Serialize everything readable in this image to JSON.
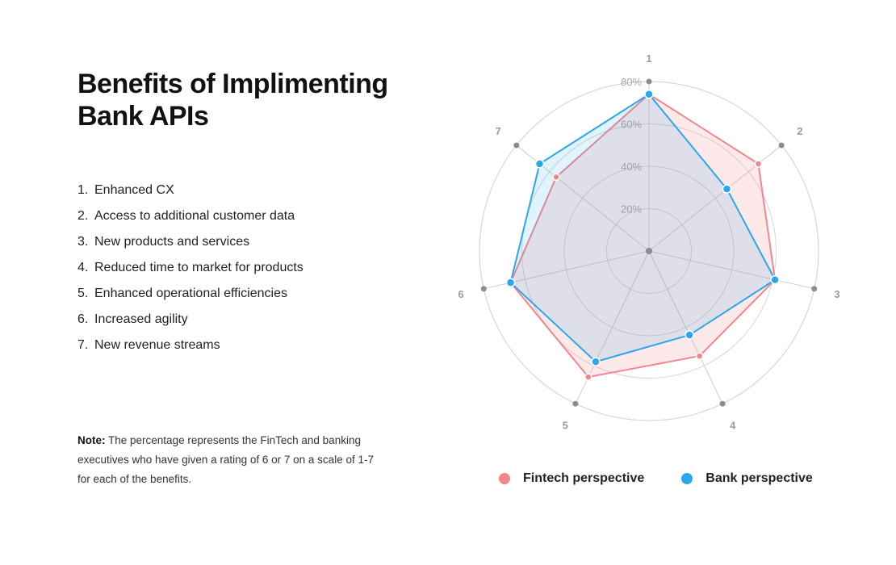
{
  "page": {
    "title": "Benefits of Implimenting Bank APIs",
    "benefits": [
      {
        "num": "1.",
        "label": "Enhanced CX"
      },
      {
        "num": "2.",
        "label": "Access to additional customer data"
      },
      {
        "num": "3.",
        "label": "New products and services"
      },
      {
        "num": "4.",
        "label": "Reduced time to market for products"
      },
      {
        "num": "5.",
        "label": "Enhanced operational efficiencies"
      },
      {
        "num": "6.",
        "label": "Increased agility"
      },
      {
        "num": "7.",
        "label": "New revenue streams"
      }
    ],
    "note_label": "Note:",
    "note_text": "The percentage represents the FinTech and banking executives who have given a rating of 6 or 7 on a scale of 1-7 for each of the benefits."
  },
  "chart_data": {
    "type": "radar",
    "axes": [
      "1",
      "2",
      "3",
      "4",
      "5",
      "6",
      "7"
    ],
    "scale": {
      "min": 0,
      "max": 80
    },
    "ring_values": [
      20,
      40,
      60,
      80
    ],
    "ring_labels": [
      "20%",
      "40%",
      "60%",
      "80%"
    ],
    "labeled_rings": [
      20,
      40,
      60,
      80
    ],
    "grid": true,
    "legend_position": "bottom",
    "series": [
      {
        "name": "Fintech perspective",
        "color": "#f2868d",
        "fill": "rgba(245,140,150,0.20)",
        "values": [
          74,
          66,
          61,
          55,
          66,
          67,
          56
        ]
      },
      {
        "name": "Bank perspective",
        "color": "#2aa8ec",
        "fill": "rgba(42,168,236,0.14)",
        "values": [
          74,
          47,
          61,
          44,
          58,
          67,
          66
        ]
      }
    ]
  }
}
